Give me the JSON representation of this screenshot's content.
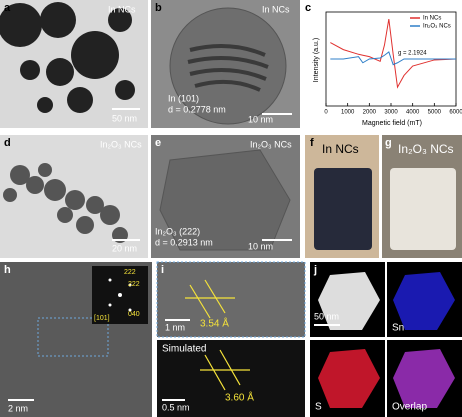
{
  "panels": {
    "a": {
      "label": "a",
      "caption": "In NCs",
      "scale": "50 nm"
    },
    "b": {
      "label": "b",
      "caption": "In NCs",
      "plane": "In (101)",
      "spacing": "d = 0.2778 nm",
      "scale": "10 nm"
    },
    "c": {
      "label": "c",
      "chart_data": {
        "type": "line",
        "xlabel": "Magnetic field (mT)",
        "ylabel": "Intensity (a.u.)",
        "annotation": "g = 2.1924",
        "x": [
          200,
          800,
          1500,
          1700,
          2000,
          2500,
          2700,
          2900,
          3100,
          3300,
          3600,
          4000,
          5000,
          6000
        ],
        "series": [
          {
            "name": "In NCs",
            "color": "#e0312f",
            "values": [
              0.35,
              0.2,
              0.1,
              0.08,
              0.05,
              -0.05,
              0.3,
              0.85,
              0.1,
              -0.6,
              -0.35,
              -0.15,
              -0.02,
              0
            ]
          },
          {
            "name": "In₂O₃ NCs",
            "color": "#2f7fc8",
            "values": [
              0,
              0,
              0.05,
              -0.08,
              0,
              0.02,
              0.08,
              0.15,
              -0.12,
              -0.08,
              0,
              0,
              0,
              0
            ]
          }
        ],
        "xlim": [
          0,
          6000
        ],
        "xticks": [
          0,
          1000,
          2000,
          3000,
          4000,
          5000,
          6000
        ],
        "ylim": [
          -1,
          1
        ],
        "legend": "upper-right"
      }
    },
    "d": {
      "label": "d",
      "caption": "In₂O₃ NCs",
      "scale": "20 nm"
    },
    "e": {
      "label": "e",
      "caption": "In₂O₃ NCs",
      "plane": "In₂O₃ (222)",
      "spacing": "d = 0.2913 nm",
      "scale": "10 nm"
    },
    "f": {
      "label": "f",
      "caption": "In NCs"
    },
    "g": {
      "label": "g",
      "caption": "In₂O₃ NCs"
    },
    "h": {
      "label": "h",
      "spots": [
        "222",
        "222",
        "040"
      ],
      "zone": "[101]",
      "scale": "2 nm"
    },
    "i": {
      "label": "i",
      "scale_top": "1 nm",
      "spacing_top": "3.54 Å",
      "sim": "Simulated",
      "scale_bottom": "0.5 nm",
      "spacing_bottom": "3.60 Å"
    },
    "j": {
      "label": "j",
      "scale": "50 nm",
      "maps": [
        "Sn",
        "S",
        "Overlap"
      ]
    }
  }
}
